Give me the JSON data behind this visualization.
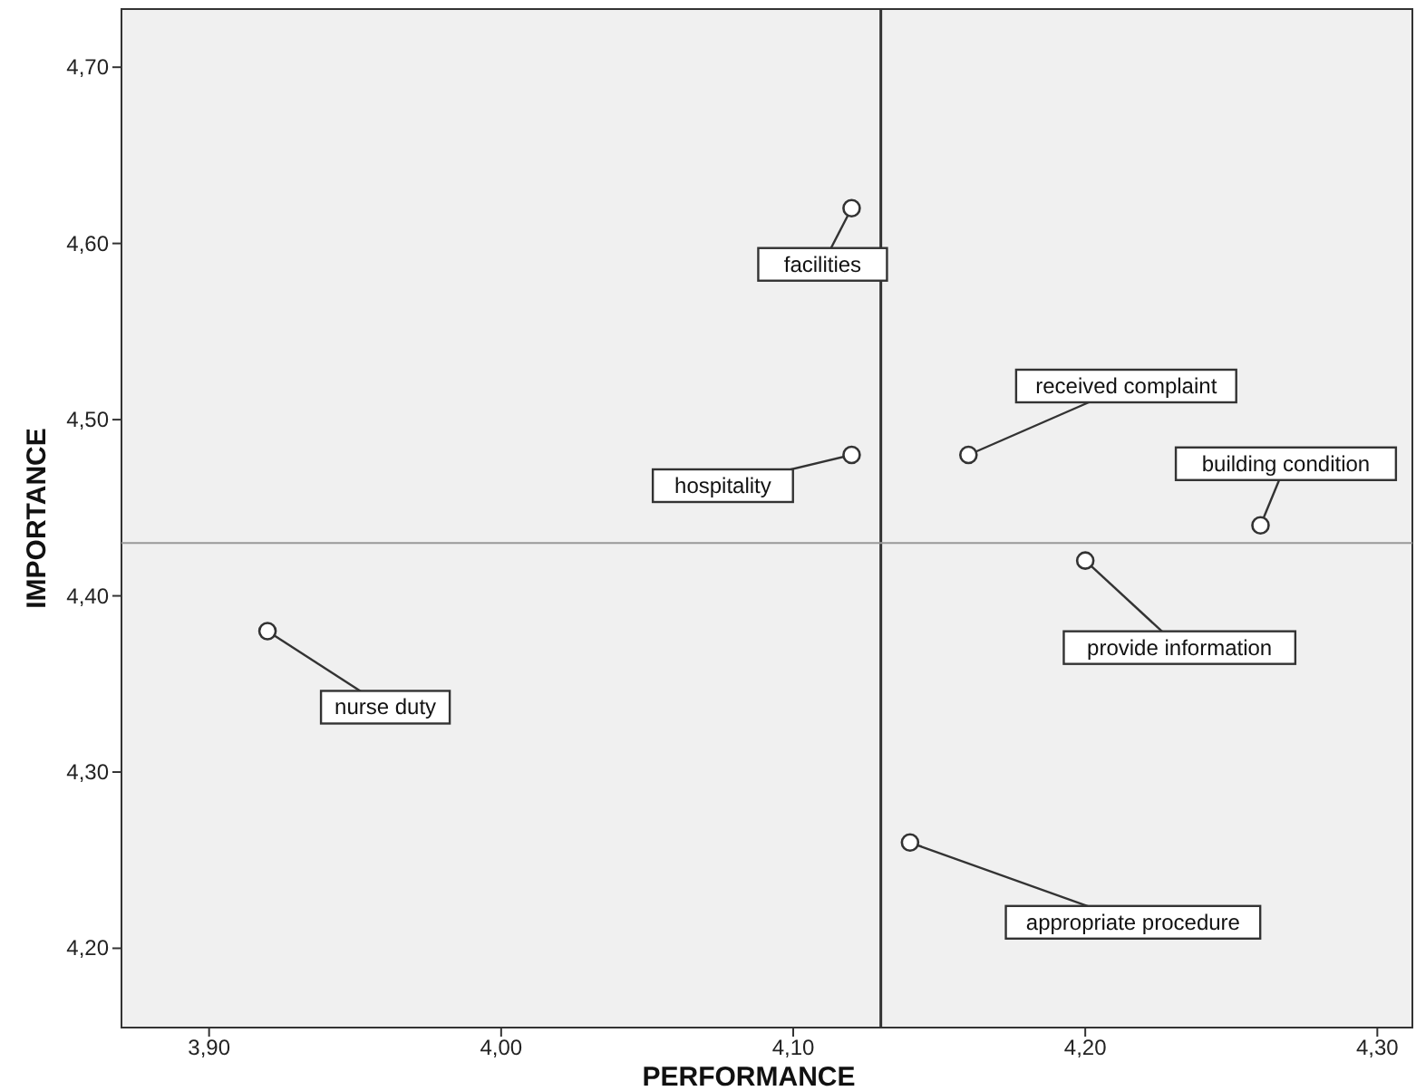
{
  "chart_data": {
    "type": "scatter",
    "xlabel": "PERFORMANCE",
    "ylabel": "IMPORTANCE",
    "x": [
      4.12,
      4.12,
      4.16,
      4.26,
      4.2,
      3.92,
      4.14
    ],
    "values": [
      4.62,
      4.48,
      4.48,
      4.44,
      4.42,
      4.38,
      4.26
    ],
    "value_labels": [
      "facilities",
      "hospitality",
      "received complaint",
      "building condition",
      "provide information",
      "nurse duty",
      "appropriate procedure"
    ],
    "color": "#333333",
    "marker": "circle",
    "grid": false,
    "xlim": [
      3.87,
      4.312
    ],
    "ylim": [
      4.155,
      4.733
    ],
    "xticks": [
      {
        "value": 3.9,
        "label": "3,90"
      },
      {
        "value": 4.0,
        "label": "4,00"
      },
      {
        "value": 4.1,
        "label": "4,10"
      },
      {
        "value": 4.2,
        "label": "4,20"
      },
      {
        "value": 4.3,
        "label": "4,30"
      }
    ],
    "yticks": [
      {
        "value": 4.2,
        "label": "4,20"
      },
      {
        "value": 4.3,
        "label": "4,30"
      },
      {
        "value": 4.4,
        "label": "4,40"
      },
      {
        "value": 4.5,
        "label": "4,50"
      },
      {
        "value": 4.6,
        "label": "4,60"
      },
      {
        "value": 4.7,
        "label": "4,70"
      }
    ],
    "ref_lines": [
      {
        "axis": "x",
        "value": 4.13,
        "color": "#333333"
      },
      {
        "axis": "y",
        "value": 4.43,
        "color": "#999999"
      }
    ]
  }
}
